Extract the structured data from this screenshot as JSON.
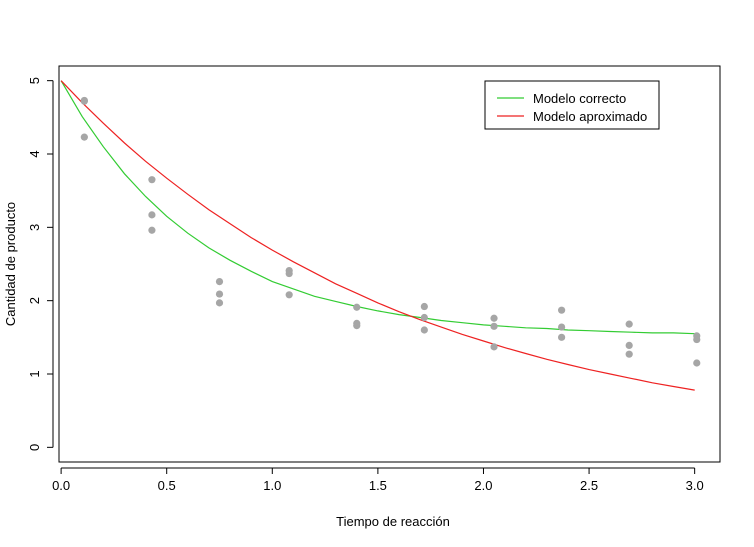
{
  "chart_data": {
    "type": "scatter",
    "title": "",
    "xlabel": "Tiempo de reacción",
    "ylabel": "Cantidad de producto",
    "xlim": [
      -0.01,
      3.12
    ],
    "ylim": [
      -0.2,
      5.2
    ],
    "xticks": [
      "0.0",
      "0.5",
      "1.0",
      "1.5",
      "2.0",
      "2.5",
      "3.0"
    ],
    "yticks": [
      "0",
      "1",
      "2",
      "3",
      "4",
      "5"
    ],
    "grid": false,
    "legend_position": "top-right",
    "points_color": "#a6a6a6",
    "points": [
      {
        "x": 0.11,
        "y": 4.73
      },
      {
        "x": 0.11,
        "y": 4.72
      },
      {
        "x": 0.11,
        "y": 4.23
      },
      {
        "x": 0.43,
        "y": 3.65
      },
      {
        "x": 0.43,
        "y": 3.17
      },
      {
        "x": 0.43,
        "y": 2.96
      },
      {
        "x": 0.75,
        "y": 2.26
      },
      {
        "x": 0.75,
        "y": 2.09
      },
      {
        "x": 0.75,
        "y": 1.97
      },
      {
        "x": 1.08,
        "y": 2.41
      },
      {
        "x": 1.08,
        "y": 2.37
      },
      {
        "x": 1.08,
        "y": 2.08
      },
      {
        "x": 1.4,
        "y": 1.91
      },
      {
        "x": 1.4,
        "y": 1.69
      },
      {
        "x": 1.4,
        "y": 1.66
      },
      {
        "x": 1.72,
        "y": 1.92
      },
      {
        "x": 1.72,
        "y": 1.77
      },
      {
        "x": 1.72,
        "y": 1.6
      },
      {
        "x": 2.05,
        "y": 1.76
      },
      {
        "x": 2.05,
        "y": 1.65
      },
      {
        "x": 2.05,
        "y": 1.37
      },
      {
        "x": 2.37,
        "y": 1.87
      },
      {
        "x": 2.37,
        "y": 1.64
      },
      {
        "x": 2.37,
        "y": 1.5
      },
      {
        "x": 2.69,
        "y": 1.68
      },
      {
        "x": 2.69,
        "y": 1.39
      },
      {
        "x": 2.69,
        "y": 1.27
      },
      {
        "x": 3.01,
        "y": 1.52
      },
      {
        "x": 3.01,
        "y": 1.47
      },
      {
        "x": 3.01,
        "y": 1.15
      }
    ],
    "series": [
      {
        "name": "Modelo correcto",
        "color": "#33cc33",
        "x": [
          0.0,
          0.1,
          0.2,
          0.3,
          0.4,
          0.5,
          0.6,
          0.7,
          0.8,
          0.9,
          1.0,
          1.1,
          1.2,
          1.3,
          1.4,
          1.5,
          1.6,
          1.7,
          1.8,
          1.9,
          2.0,
          2.1,
          2.2,
          2.3,
          2.4,
          2.5,
          2.6,
          2.7,
          2.8,
          2.9,
          3.0
        ],
        "y": [
          5.0,
          4.51,
          4.1,
          3.73,
          3.42,
          3.15,
          2.92,
          2.72,
          2.55,
          2.4,
          2.26,
          2.16,
          2.06,
          1.99,
          1.92,
          1.86,
          1.81,
          1.77,
          1.73,
          1.7,
          1.67,
          1.65,
          1.63,
          1.62,
          1.6,
          1.59,
          1.58,
          1.57,
          1.56,
          1.56,
          1.55
        ]
      },
      {
        "name": "Modelo aproximado",
        "color": "#ee2222",
        "x": [
          0.0,
          0.1,
          0.2,
          0.3,
          0.4,
          0.5,
          0.6,
          0.7,
          0.8,
          0.9,
          1.0,
          1.1,
          1.2,
          1.3,
          1.4,
          1.5,
          1.6,
          1.7,
          1.8,
          1.9,
          2.0,
          2.1,
          2.2,
          2.3,
          2.4,
          2.5,
          2.6,
          2.7,
          2.8,
          2.9,
          3.0
        ],
        "y": [
          5.0,
          4.7,
          4.42,
          4.15,
          3.9,
          3.67,
          3.45,
          3.24,
          3.05,
          2.86,
          2.69,
          2.53,
          2.38,
          2.23,
          2.1,
          1.97,
          1.85,
          1.74,
          1.64,
          1.54,
          1.45,
          1.36,
          1.28,
          1.2,
          1.13,
          1.06,
          1.0,
          0.94,
          0.88,
          0.83,
          0.78
        ]
      }
    ]
  }
}
